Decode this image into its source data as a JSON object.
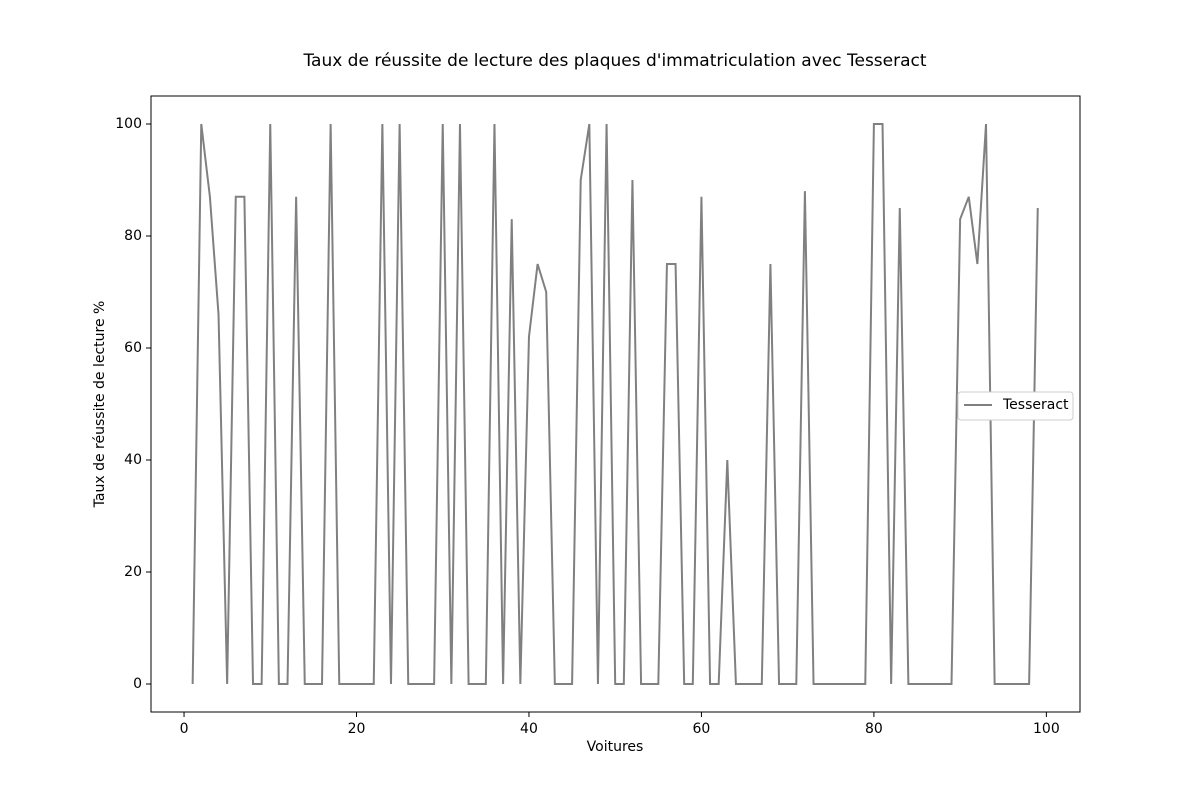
{
  "chart_data": {
    "type": "line",
    "title": "Taux de réussite de lecture des plaques d'immatriculation avec Tesseract",
    "xlabel": "Voitures",
    "ylabel": "Taux de réussite de lecture %",
    "x": [
      1,
      2,
      3,
      4,
      5,
      6,
      7,
      8,
      9,
      10,
      11,
      12,
      13,
      14,
      15,
      16,
      17,
      18,
      19,
      20,
      21,
      22,
      23,
      24,
      25,
      26,
      27,
      28,
      29,
      30,
      31,
      32,
      33,
      34,
      35,
      36,
      37,
      38,
      39,
      40,
      41,
      42,
      43,
      44,
      45,
      46,
      47,
      48,
      49,
      50,
      51,
      52,
      53,
      54,
      55,
      56,
      57,
      58,
      59,
      60,
      61,
      62,
      63,
      64,
      65,
      66,
      67,
      68,
      69,
      70,
      71,
      72,
      73,
      74,
      75,
      76,
      77,
      78,
      79,
      80,
      81,
      82,
      83,
      84,
      85,
      86,
      87,
      88,
      89,
      90,
      91,
      92,
      93,
      94,
      95,
      96,
      97,
      98,
      99
    ],
    "series": [
      {
        "name": "Tesseract",
        "color": "#808080",
        "values": [
          0,
          100,
          87,
          66,
          0,
          87,
          87,
          0,
          0,
          100,
          0,
          0,
          87,
          0,
          0,
          0,
          100,
          0,
          0,
          0,
          0,
          0,
          100,
          0,
          100,
          0,
          0,
          0,
          0,
          100,
          0,
          100,
          0,
          0,
          0,
          100,
          0,
          83,
          0,
          62,
          75,
          70,
          0,
          0,
          0,
          90,
          100,
          0,
          100,
          0,
          0,
          90,
          0,
          0,
          0,
          75,
          75,
          0,
          0,
          87,
          0,
          0,
          40,
          0,
          0,
          0,
          0,
          75,
          0,
          0,
          0,
          88,
          0,
          0,
          0,
          0,
          0,
          0,
          0,
          100,
          100,
          0,
          85,
          0,
          0,
          0,
          0,
          0,
          0,
          83,
          87,
          75,
          100,
          0,
          0,
          0,
          0,
          0,
          85
        ]
      }
    ],
    "xlim": [
      -3.83,
      103.9
    ],
    "ylim": [
      -5,
      105
    ],
    "xticks": [
      0,
      20,
      40,
      60,
      80,
      100
    ],
    "yticks": [
      0,
      20,
      40,
      60,
      80,
      100
    ],
    "legend": "center right"
  }
}
